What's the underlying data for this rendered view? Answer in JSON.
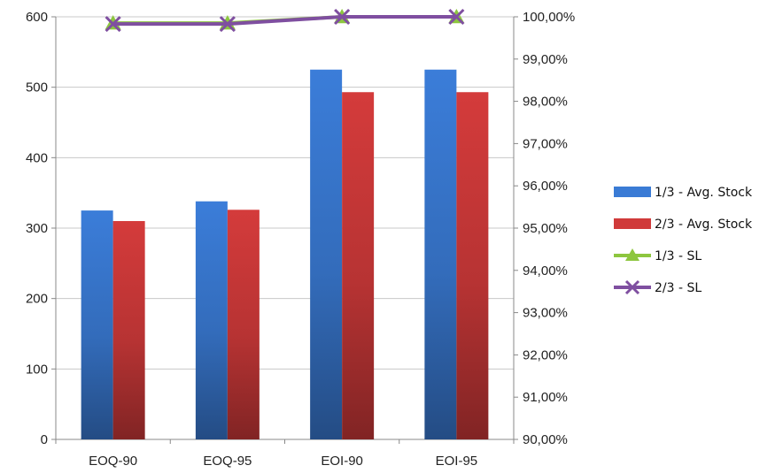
{
  "chart_data": {
    "type": "bar",
    "categories": [
      "EOQ-90",
      "EOQ-95",
      "EOI-90",
      "EOI-95"
    ],
    "series": [
      {
        "name": "1/3 - Avg.  Stock",
        "kind": "bar",
        "axis": "left",
        "color": "#3A7BD5",
        "values": [
          325,
          338,
          525,
          525
        ]
      },
      {
        "name": "2/3 - Avg. Stock",
        "kind": "bar",
        "axis": "left",
        "color": "#D03A3A",
        "values": [
          310,
          326,
          493,
          493
        ]
      },
      {
        "name": "1/3 - SL",
        "kind": "line",
        "axis": "right",
        "color": "#8DC63F",
        "marker": "triangle",
        "values": [
          0.9985,
          0.9985,
          1.0,
          1.0
        ]
      },
      {
        "name": "2/3 - SL",
        "kind": "line",
        "axis": "right",
        "color": "#7F4FA0",
        "marker": "x",
        "values": [
          0.9983,
          0.9983,
          1.0,
          1.0
        ]
      }
    ],
    "left_axis": {
      "min": 0,
      "max": 600,
      "ticks": [
        "0",
        "100",
        "200",
        "300",
        "400",
        "500",
        "600"
      ]
    },
    "right_axis": {
      "min": 0.9,
      "max": 1.0,
      "ticks": [
        "90,00%",
        "91,00%",
        "92,00%",
        "93,00%",
        "94,00%",
        "95,00%",
        "96,00%",
        "97,00%",
        "98,00%",
        "99,00%",
        "100,00%"
      ]
    },
    "grid": true,
    "legend_position": "right",
    "title": "",
    "xlabel": "",
    "ylabel": ""
  }
}
